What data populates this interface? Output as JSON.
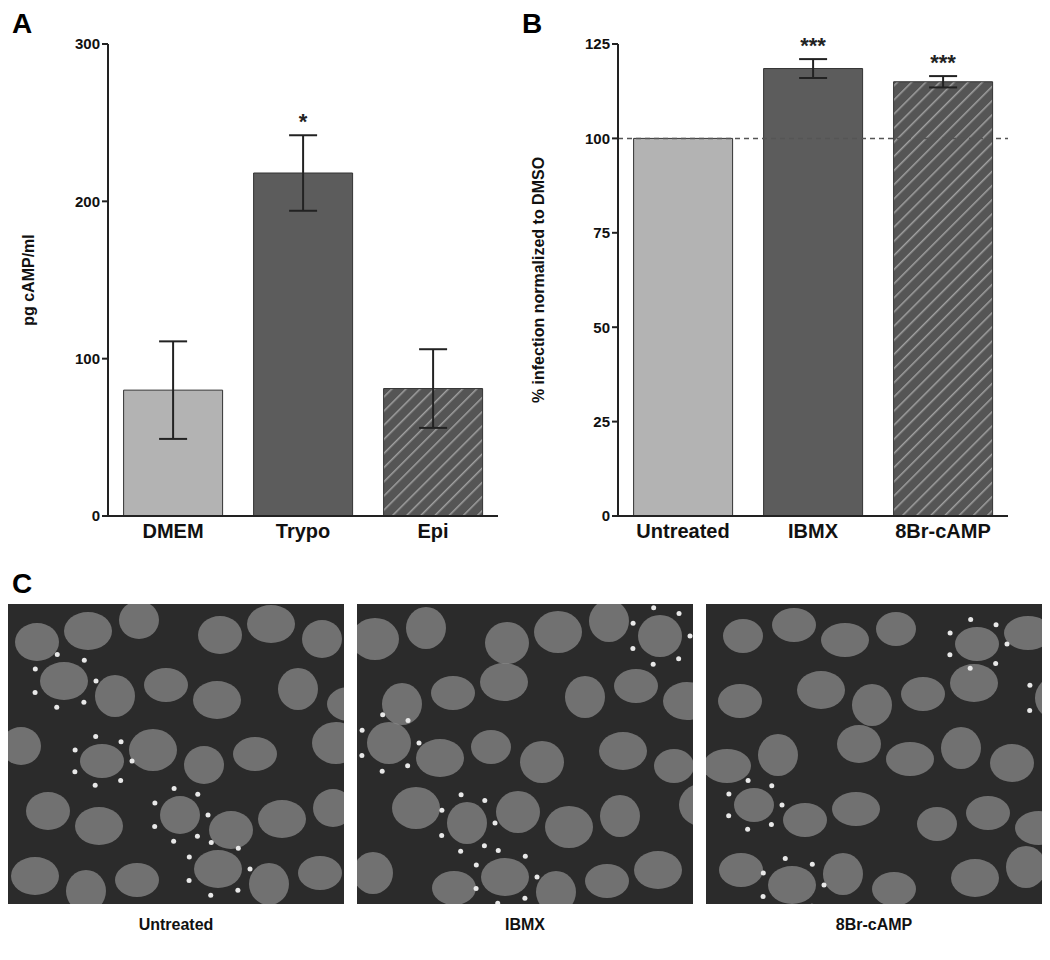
{
  "chart_data": [
    {
      "panel": "A",
      "type": "bar",
      "y_label": "pg cAMP/ml",
      "categories": [
        "DMEM",
        "Trypo",
        "Epi"
      ],
      "values": [
        80,
        218,
        81
      ],
      "errors": [
        31,
        24,
        25
      ],
      "colors": [
        "#b3b3b3",
        "#5c5c5c",
        "#555555"
      ],
      "ylim": [
        0,
        300
      ],
      "yticks": [
        0,
        100,
        200,
        300
      ],
      "grid": false,
      "annotations": [
        {
          "category": "Trypo",
          "text": "*"
        }
      ]
    },
    {
      "panel": "B",
      "type": "bar",
      "y_label": "% infection normalized to DMSO",
      "categories": [
        "Untreated",
        "IBMX",
        "8Br-cAMP"
      ],
      "values": [
        100,
        118.5,
        115
      ],
      "errors": [
        0,
        2.5,
        1.5
      ],
      "colors": [
        "#b3b3b3",
        "#5c5c5c",
        "#555555"
      ],
      "ylim": [
        0,
        125
      ],
      "yticks": [
        0,
        25,
        50,
        75,
        100,
        125
      ],
      "grid": false,
      "reference_line": 100,
      "annotations": [
        {
          "category": "IBMX",
          "text": "***"
        },
        {
          "category": "8Br-cAMP",
          "text": "***"
        }
      ]
    }
  ],
  "images": {
    "panel": "C",
    "labels": [
      "Untreated",
      "IBMX",
      "8Br-cAMP"
    ]
  }
}
